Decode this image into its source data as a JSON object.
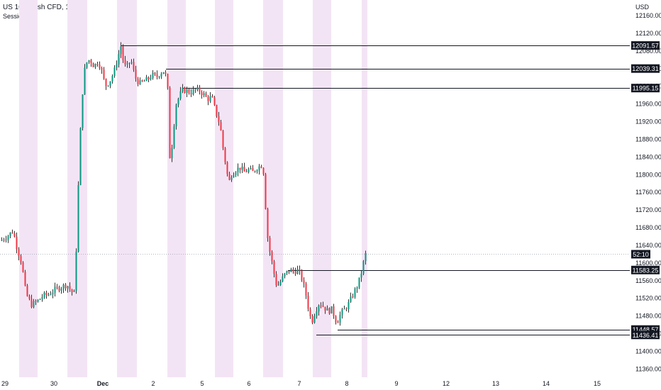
{
  "header": {
    "symbol_title": "US 100 Cash CFD, 1h, FX",
    "indicator": "Sessions",
    "currency": "USD"
  },
  "colors": {
    "up": "#089981",
    "down": "#f23645",
    "wick": "#333333",
    "session_shade": "#f3e4f5",
    "level_line": "#131722",
    "label_bg": "#131722",
    "label_text": "#ffffff",
    "price_line": "#9aa0ab"
  },
  "chart_data": {
    "type": "candlestick",
    "title": "US 100 Cash CFD, 1h, FX",
    "ylabel": "USD",
    "ylim": [
      11347,
      12180
    ],
    "y_ticks": [
      12160,
      12120,
      12080,
      12040,
      12000,
      11960,
      11920,
      11880,
      11840,
      11800,
      11760,
      11720,
      11680,
      11640,
      11600,
      11560,
      11520,
      11480,
      11440,
      11400,
      11360
    ],
    "x_tick_labels": [
      "29",
      "30",
      "Dec",
      "2",
      "5",
      "6",
      "7",
      "8",
      "9",
      "12",
      "13",
      "14",
      "15"
    ],
    "current_price_label": "52:10",
    "horizontal_levels": [
      12091.57,
      12039.31,
      11995.15,
      11583.25,
      11448.57,
      11436.41
    ],
    "price_path": [
      [
        0,
        11650
      ],
      [
        10,
        11660
      ],
      [
        18,
        11672
      ],
      [
        24,
        11630
      ],
      [
        30,
        11600
      ],
      [
        36,
        11530
      ],
      [
        44,
        11505
      ],
      [
        52,
        11512
      ],
      [
        60,
        11525
      ],
      [
        68,
        11528
      ],
      [
        78,
        11540
      ],
      [
        86,
        11545
      ],
      [
        94,
        11550
      ],
      [
        100,
        11535
      ],
      [
        105,
        11530
      ],
      [
        108,
        11680
      ],
      [
        111,
        11820
      ],
      [
        114,
        11940
      ],
      [
        117,
        12010
      ],
      [
        120,
        12050
      ],
      [
        126,
        12060
      ],
      [
        132,
        12045
      ],
      [
        138,
        12055
      ],
      [
        142,
        12040
      ],
      [
        148,
        12000
      ],
      [
        154,
        12010
      ],
      [
        160,
        12030
      ],
      [
        165,
        12060
      ],
      [
        170,
        12090
      ],
      [
        174,
        12050
      ],
      [
        178,
        12040
      ],
      [
        184,
        12060
      ],
      [
        190,
        12020
      ],
      [
        196,
        12005
      ],
      [
        202,
        12010
      ],
      [
        208,
        12015
      ],
      [
        214,
        12025
      ],
      [
        220,
        12020
      ],
      [
        226,
        12030
      ],
      [
        232,
        12035
      ],
      [
        236,
        11990
      ],
      [
        238,
        11850
      ],
      [
        240,
        11830
      ],
      [
        244,
        11900
      ],
      [
        248,
        11960
      ],
      [
        252,
        11975
      ],
      [
        256,
        11990
      ],
      [
        262,
        11990
      ],
      [
        268,
        11985
      ],
      [
        274,
        11990
      ],
      [
        280,
        11990
      ],
      [
        286,
        11982
      ],
      [
        292,
        11970
      ],
      [
        298,
        11975
      ],
      [
        304,
        11940
      ],
      [
        310,
        11910
      ],
      [
        314,
        11860
      ],
      [
        318,
        11820
      ],
      [
        322,
        11780
      ],
      [
        326,
        11800
      ],
      [
        332,
        11810
      ],
      [
        338,
        11815
      ],
      [
        344,
        11805
      ],
      [
        350,
        11810
      ],
      [
        356,
        11805
      ],
      [
        362,
        11815
      ],
      [
        368,
        11820
      ],
      [
        372,
        11800
      ],
      [
        375,
        11690
      ],
      [
        378,
        11640
      ],
      [
        382,
        11610
      ],
      [
        386,
        11575
      ],
      [
        390,
        11545
      ],
      [
        396,
        11560
      ],
      [
        402,
        11575
      ],
      [
        408,
        11583
      ],
      [
        414,
        11580
      ],
      [
        420,
        11583
      ],
      [
        426,
        11560
      ],
      [
        432,
        11520
      ],
      [
        436,
        11480
      ],
      [
        440,
        11470
      ],
      [
        444,
        11490
      ],
      [
        450,
        11510
      ],
      [
        456,
        11500
      ],
      [
        462,
        11490
      ],
      [
        468,
        11495
      ],
      [
        472,
        11470
      ],
      [
        476,
        11470
      ],
      [
        480,
        11485
      ],
      [
        486,
        11495
      ],
      [
        492,
        11510
      ],
      [
        498,
        11530
      ],
      [
        504,
        11550
      ],
      [
        508,
        11570
      ],
      [
        512,
        11600
      ],
      [
        516,
        11625
      ]
    ]
  }
}
